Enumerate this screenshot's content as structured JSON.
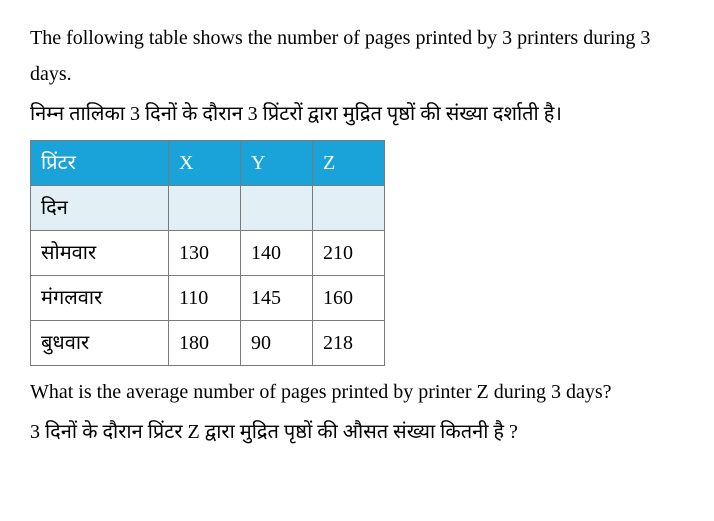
{
  "intro_en": "The following table shows the number of pages printed by 3 printers during 3 days.",
  "intro_hi": "निम्न तालिका 3 दिनों के दौरान 3 प्रिंटरों द्वारा मुद्रित पृष्ठों की संख्या दर्शाती है।",
  "table": {
    "header_bg": "#1aa3d9",
    "subheader_bg": "#e2f0f5",
    "header": [
      "प्रिंटर",
      "X",
      "Y",
      "Z"
    ],
    "subheader": [
      "दिन",
      "",
      "",
      ""
    ],
    "rows": [
      [
        "सोमवार",
        "130",
        "140",
        "210"
      ],
      [
        "मंगलवार",
        "110",
        "145",
        "160"
      ],
      [
        "बुधवार",
        "180",
        "90",
        "218"
      ]
    ]
  },
  "question_en": "What is the average number of pages printed by printer Z during 3 days?",
  "question_hi": "3 दिनों के दौरान प्रिंटर Z द्वारा मुद्रित पृष्ठों की औसत संख्या कितनी है ?"
}
